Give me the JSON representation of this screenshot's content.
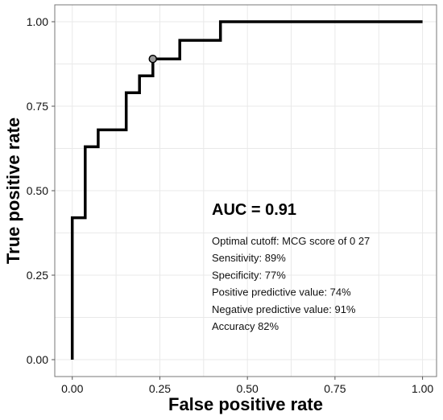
{
  "chart_data": {
    "type": "line",
    "xlabel": "False positive rate",
    "ylabel": "True positive rate",
    "xlim": [
      -0.05,
      1.04
    ],
    "ylim": [
      -0.05,
      1.05
    ],
    "x_ticks": [
      0.0,
      0.25,
      0.5,
      0.75,
      1.0
    ],
    "x_tick_labels": [
      "0.00",
      "0.25",
      "0.50",
      "0.75",
      "1.00"
    ],
    "y_ticks": [
      0.0,
      0.25,
      0.5,
      0.75,
      1.0
    ],
    "y_tick_labels": [
      "0.00",
      "0.25",
      "0.50",
      "0.75",
      "1.00"
    ],
    "grid": true,
    "series": [
      {
        "x": [
          0.0,
          0.0,
          0.037,
          0.037,
          0.074,
          0.074,
          0.154,
          0.154,
          0.192,
          0.192,
          0.23,
          0.23,
          0.307,
          0.307,
          0.423,
          0.423,
          1.0
        ],
        "y": [
          0.0,
          0.42,
          0.42,
          0.63,
          0.63,
          0.68,
          0.68,
          0.79,
          0.79,
          0.84,
          0.84,
          0.89,
          0.89,
          0.945,
          0.945,
          1.0,
          1.0
        ],
        "color": "#000000"
      }
    ],
    "optimal_point": {
      "x": 0.23,
      "y": 0.89
    },
    "annotations": {
      "auc": "AUC = 0.91",
      "lines": [
        "Optimal cutoff: MCG score of 0 27",
        "Sensitivity: 89%",
        "Specificity: 77%",
        "Positive predictive value: 74%",
        "Negative predictive value: 91%",
        "Accuracy 82%"
      ]
    }
  }
}
